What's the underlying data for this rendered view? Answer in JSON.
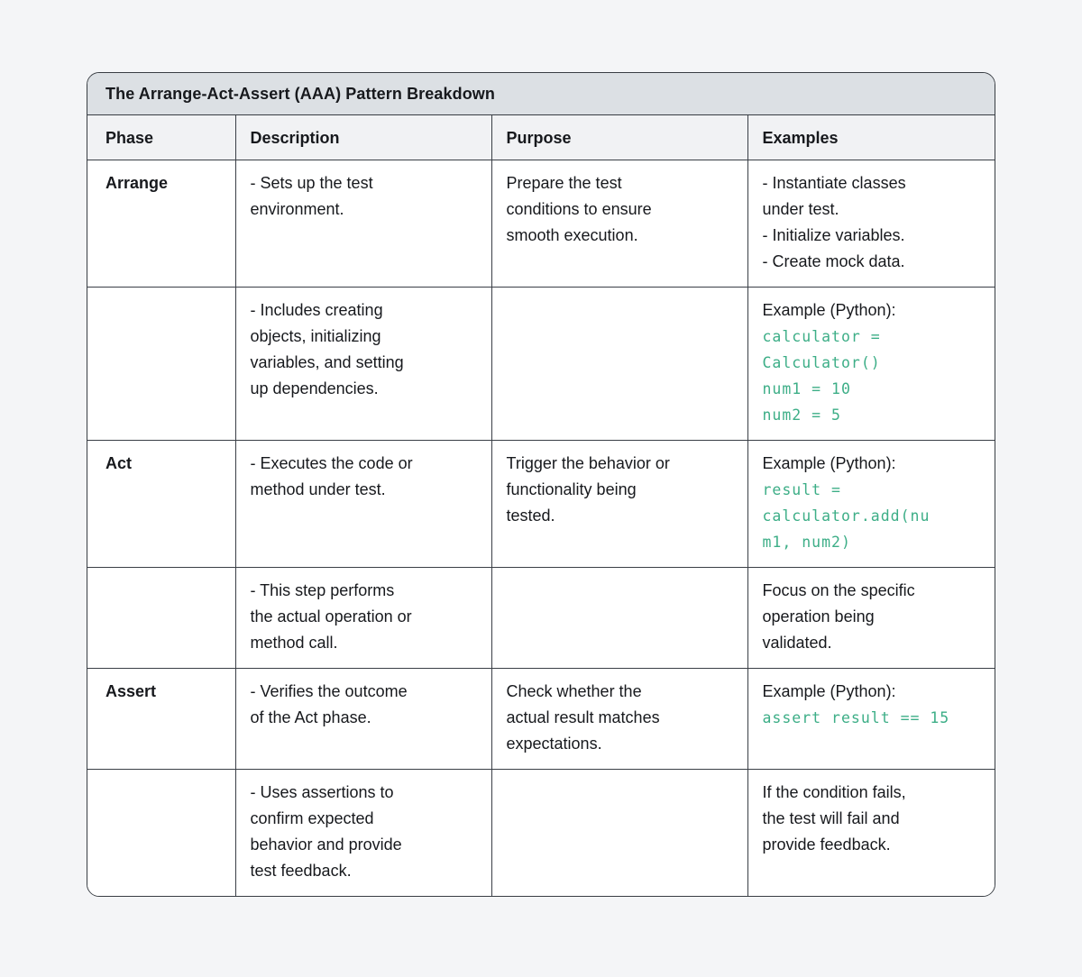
{
  "page": {
    "background": "#f4f5f7"
  },
  "colors": {
    "title_bar_bg": "#dce0e4",
    "header_row_bg": "#f1f2f4",
    "cell_bg": "#ffffff",
    "border": "#3a3f46",
    "text": "#17191d",
    "code_green": "#3dae87"
  },
  "table": {
    "title": "The Arrange-Act-Assert (AAA) Pattern Breakdown",
    "headers": [
      "Phase",
      "Description",
      "Purpose",
      "Examples"
    ],
    "rows": [
      {
        "phase": "Arrange",
        "description": "- Sets up the test\nenvironment.",
        "purpose": "Prepare the test\nconditions to ensure\nsmooth execution.",
        "examples_text": "- Instantiate classes\nunder test.\n- Initialize variables.\n- Create mock data."
      },
      {
        "phase": "",
        "description": "- Includes creating\nobjects, initializing\nvariables, and setting\nup dependencies.",
        "purpose": "",
        "examples_label": "Example (Python):",
        "examples_code": "calculator =\nCalculator()\nnum1 = 10\nnum2 = 5"
      },
      {
        "phase": "Act",
        "description": "- Executes the code or\nmethod under test.",
        "purpose": "Trigger the behavior or\nfunctionality being\ntested.",
        "examples_label": "Example (Python):",
        "examples_code": "result =\ncalculator.add(nu\nm1, num2)"
      },
      {
        "phase": "",
        "description": "- This step performs\nthe actual operation or\nmethod call.",
        "purpose": "",
        "examples_text": "Focus on the specific\noperation being\nvalidated."
      },
      {
        "phase": "Assert",
        "description": "- Verifies the outcome\nof the Act phase.",
        "purpose": "Check whether the\nactual result matches\nexpectations.",
        "examples_label": "Example (Python):",
        "examples_code": "assert result == 15"
      },
      {
        "phase": "",
        "description": "- Uses assertions to\nconfirm expected\nbehavior and provide\ntest feedback.",
        "purpose": "",
        "examples_text": "If the condition fails,\nthe test will fail and\nprovide feedback."
      }
    ]
  }
}
